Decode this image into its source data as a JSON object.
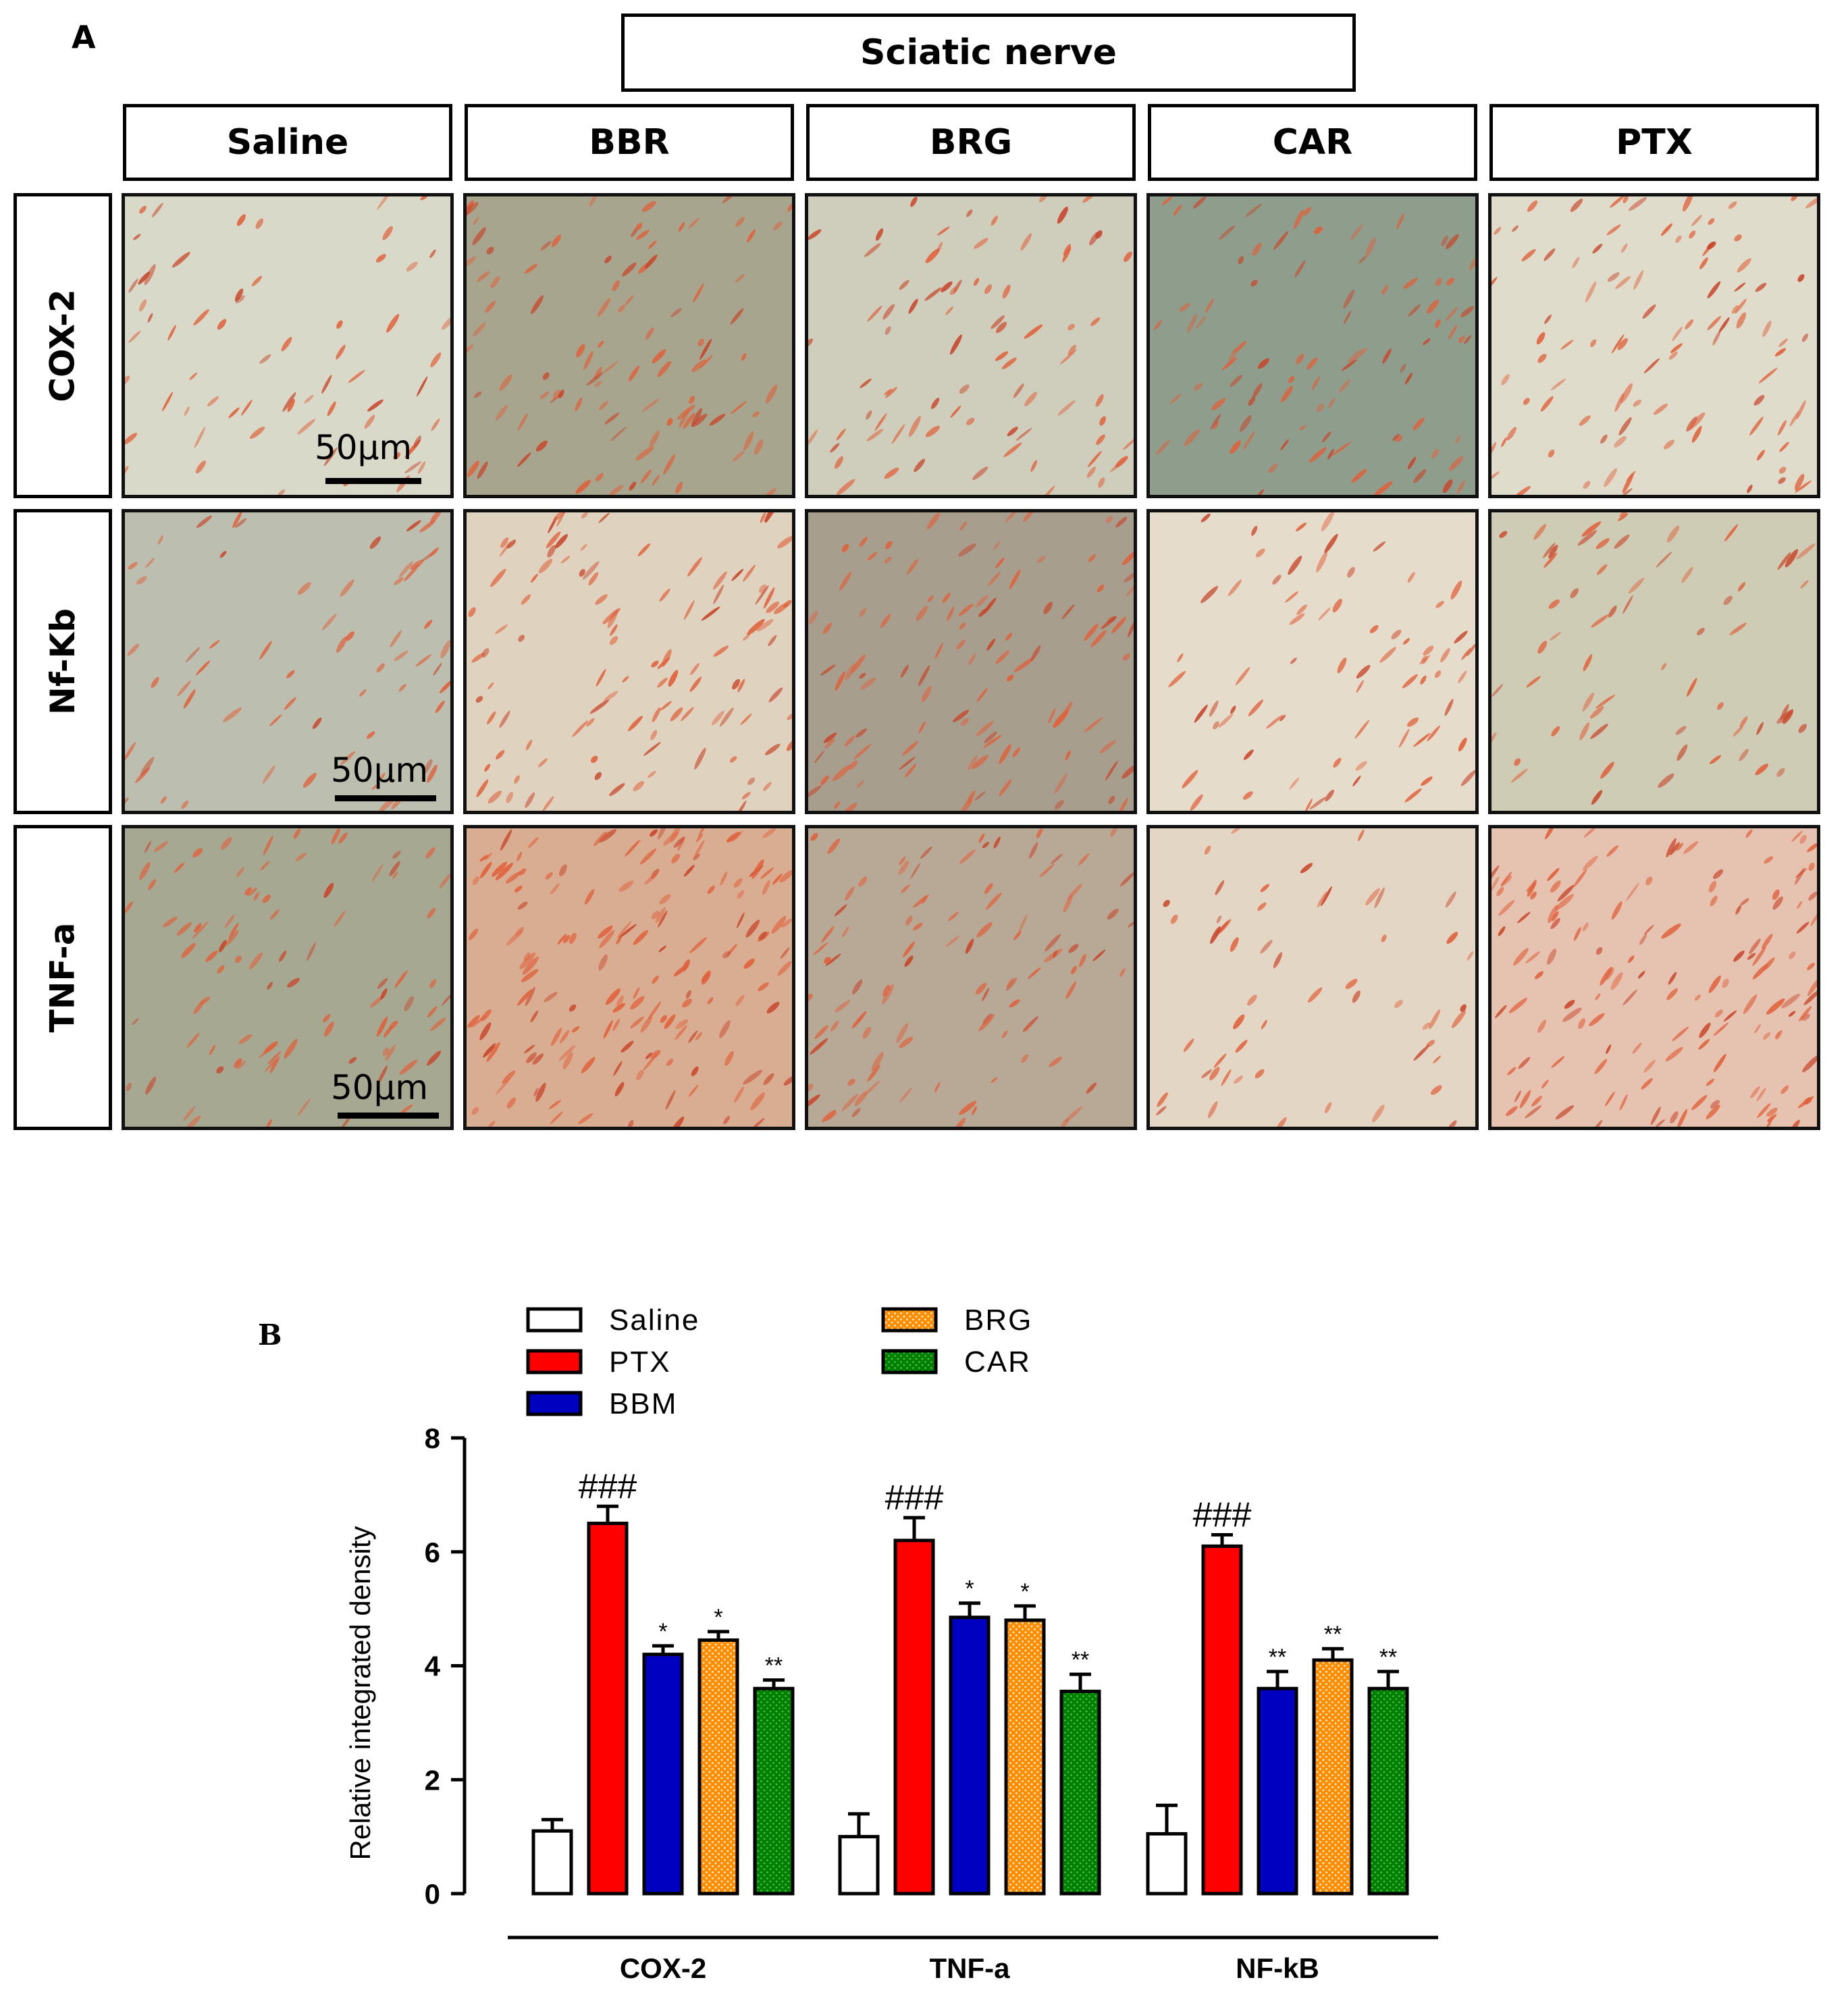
{
  "panel_a": {
    "label": "A",
    "title": "Sciatic nerve",
    "columns": [
      "Saline",
      "BBR",
      "BRG",
      "CAR",
      "PTX"
    ],
    "rows": [
      "COX-2",
      "Nf-Kb",
      "TNF-a"
    ],
    "scale_bar": "50µm"
  },
  "panel_b": {
    "label": "B"
  },
  "chart_data": {
    "type": "bar",
    "categories": [
      "COX-2",
      "TNF-a",
      "NF-kB"
    ],
    "ylabel": "Relative integrated density",
    "xlabel": "",
    "ylim": [
      0,
      8
    ],
    "yticks": [
      0,
      2,
      4,
      6,
      8
    ],
    "legend": "top",
    "series": [
      {
        "name": "Saline",
        "values": [
          1.1,
          1.0,
          1.05
        ],
        "errors": [
          0.2,
          0.4,
          0.5
        ],
        "color": "#ffffff",
        "pattern": "none",
        "annotations": [
          "",
          "",
          ""
        ]
      },
      {
        "name": "PTX",
        "values": [
          6.5,
          6.2,
          6.1
        ],
        "errors": [
          0.3,
          0.4,
          0.2
        ],
        "color": "#ff0000",
        "pattern": "none",
        "annotations": [
          "###",
          "###",
          "###"
        ]
      },
      {
        "name": "BBM",
        "values": [
          4.2,
          4.85,
          3.6
        ],
        "errors": [
          0.15,
          0.25,
          0.3
        ],
        "color": "#0000c0",
        "pattern": "none",
        "annotations": [
          "*",
          "*",
          "**"
        ]
      },
      {
        "name": "BRG",
        "values": [
          4.45,
          4.8,
          4.1
        ],
        "errors": [
          0.15,
          0.25,
          0.2
        ],
        "color": "#ff8c00",
        "pattern": "dots",
        "annotations": [
          "*",
          "*",
          "**"
        ]
      },
      {
        "name": "CAR",
        "values": [
          3.6,
          3.55,
          3.6
        ],
        "errors": [
          0.15,
          0.3,
          0.3
        ],
        "color": "#008000",
        "pattern": "dots",
        "annotations": [
          "**",
          "**",
          "**"
        ]
      }
    ]
  }
}
